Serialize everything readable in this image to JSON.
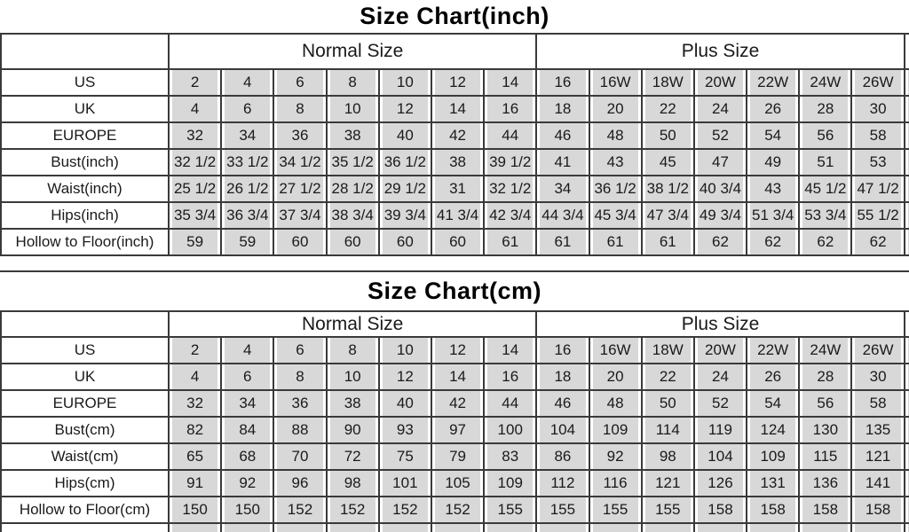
{
  "colors": {
    "cell_fill": "#d8d8d8",
    "grid_line": "#3a3a3a",
    "text": "#1a1a1a",
    "background": "#ffffff"
  },
  "chart_data": [
    {
      "type": "table",
      "title": "Size Chart(inch)",
      "column_groups": [
        {
          "label": "Normal Size",
          "span": 7
        },
        {
          "label": "Plus Size",
          "span": 7
        }
      ],
      "rows": [
        {
          "label": "US",
          "values": [
            "2",
            "4",
            "6",
            "8",
            "10",
            "12",
            "14",
            "16",
            "16W",
            "18W",
            "20W",
            "22W",
            "24W",
            "26W"
          ]
        },
        {
          "label": "UK",
          "values": [
            "4",
            "6",
            "8",
            "10",
            "12",
            "14",
            "16",
            "18",
            "20",
            "22",
            "24",
            "26",
            "28",
            "30"
          ]
        },
        {
          "label": "EUROPE",
          "values": [
            "32",
            "34",
            "36",
            "38",
            "40",
            "42",
            "44",
            "46",
            "48",
            "50",
            "52",
            "54",
            "56",
            "58"
          ]
        },
        {
          "label": "Bust(inch)",
          "values": [
            "32 1/2",
            "33 1/2",
            "34 1/2",
            "35 1/2",
            "36 1/2",
            "38",
            "39 1/2",
            "41",
            "43",
            "45",
            "47",
            "49",
            "51",
            "53"
          ]
        },
        {
          "label": "Waist(inch)",
          "values": [
            "25 1/2",
            "26 1/2",
            "27 1/2",
            "28 1/2",
            "29 1/2",
            "31",
            "32 1/2",
            "34",
            "36 1/2",
            "38 1/2",
            "40 3/4",
            "43",
            "45 1/2",
            "47 1/2"
          ]
        },
        {
          "label": "Hips(inch)",
          "values": [
            "35 3/4",
            "36 3/4",
            "37 3/4",
            "38 3/4",
            "39 3/4",
            "41 3/4",
            "42 3/4",
            "44 3/4",
            "45 3/4",
            "47 3/4",
            "49 3/4",
            "51 3/4",
            "53 3/4",
            "55 1/2"
          ]
        },
        {
          "label": "Hollow to Floor(inch)",
          "values": [
            "59",
            "59",
            "60",
            "60",
            "60",
            "60",
            "61",
            "61",
            "61",
            "61",
            "62",
            "62",
            "62",
            "62"
          ]
        }
      ]
    },
    {
      "type": "table",
      "title": "Size Chart(cm)",
      "column_groups": [
        {
          "label": "Normal Size",
          "span": 7
        },
        {
          "label": "Plus Size",
          "span": 7
        }
      ],
      "rows": [
        {
          "label": "US",
          "values": [
            "2",
            "4",
            "6",
            "8",
            "10",
            "12",
            "14",
            "16",
            "16W",
            "18W",
            "20W",
            "22W",
            "24W",
            "26W"
          ]
        },
        {
          "label": "UK",
          "values": [
            "4",
            "6",
            "8",
            "10",
            "12",
            "14",
            "16",
            "18",
            "20",
            "22",
            "24",
            "26",
            "28",
            "30"
          ]
        },
        {
          "label": "EUROPE",
          "values": [
            "32",
            "34",
            "36",
            "38",
            "40",
            "42",
            "44",
            "46",
            "48",
            "50",
            "52",
            "54",
            "56",
            "58"
          ]
        },
        {
          "label": "Bust(cm)",
          "values": [
            "82",
            "84",
            "88",
            "90",
            "93",
            "97",
            "100",
            "104",
            "109",
            "114",
            "119",
            "124",
            "130",
            "135"
          ]
        },
        {
          "label": "Waist(cm)",
          "values": [
            "65",
            "68",
            "70",
            "72",
            "75",
            "79",
            "83",
            "86",
            "92",
            "98",
            "104",
            "109",
            "115",
            "121"
          ]
        },
        {
          "label": "Hips(cm)",
          "values": [
            "91",
            "92",
            "96",
            "98",
            "101",
            "105",
            "109",
            "112",
            "116",
            "121",
            "126",
            "131",
            "136",
            "141"
          ]
        },
        {
          "label": "Hollow to Floor(cm)",
          "values": [
            "150",
            "150",
            "152",
            "152",
            "152",
            "152",
            "155",
            "155",
            "155",
            "155",
            "158",
            "158",
            "158",
            "158"
          ]
        }
      ]
    }
  ]
}
